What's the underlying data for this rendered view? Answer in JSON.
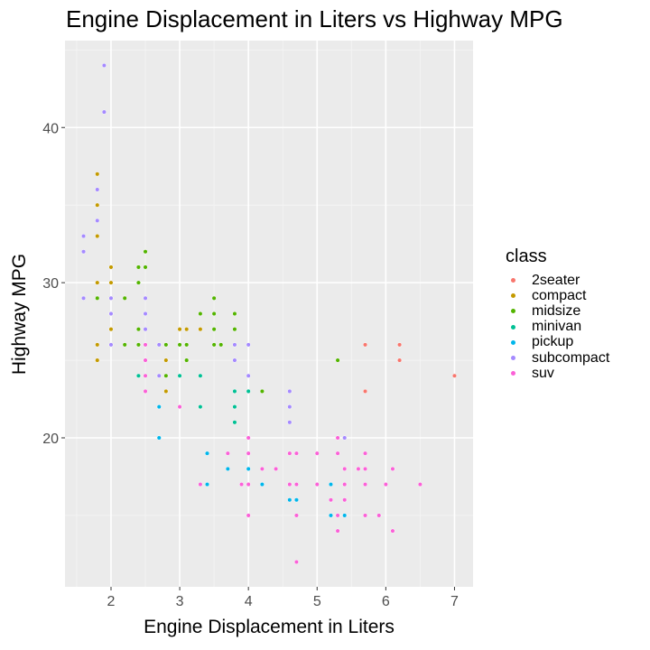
{
  "chart_data": {
    "type": "scatter",
    "title": "Engine Displacement in Liters vs Highway MPG",
    "xlabel": "Engine Displacement in Liters",
    "ylabel": "Highway MPG",
    "xlim": [
      1.33,
      7.27
    ],
    "ylim": [
      10.4,
      45.6
    ],
    "xticks": [
      2,
      3,
      4,
      5,
      6,
      7
    ],
    "yticks": [
      20,
      30,
      40
    ],
    "grid": true,
    "legend": {
      "title": "class",
      "placement": "right"
    },
    "series": [
      {
        "name": "2seater",
        "color": "#F8766D",
        "points": [
          [
            5.7,
            26
          ],
          [
            5.7,
            23
          ],
          [
            6.2,
            26
          ],
          [
            6.2,
            25
          ],
          [
            7.0,
            24
          ]
        ]
      },
      {
        "name": "compact",
        "color": "#C49A00",
        "points": [
          [
            1.8,
            29
          ],
          [
            2.0,
            31
          ],
          [
            2.0,
            30
          ],
          [
            2.8,
            26
          ],
          [
            3.1,
            27
          ],
          [
            1.8,
            26
          ],
          [
            1.8,
            25
          ],
          [
            2.0,
            28
          ],
          [
            2.0,
            27
          ],
          [
            2.8,
            25
          ],
          [
            3.1,
            25
          ],
          [
            2.2,
            26
          ],
          [
            2.2,
            29
          ],
          [
            2.4,
            31
          ],
          [
            3.0,
            27
          ],
          [
            3.3,
            27
          ],
          [
            1.8,
            30
          ],
          [
            1.8,
            33
          ],
          [
            1.8,
            35
          ],
          [
            1.8,
            37
          ],
          [
            2.0,
            29
          ],
          [
            2.8,
            24
          ],
          [
            2.0,
            26
          ],
          [
            2.5,
            29
          ],
          [
            2.8,
            23
          ]
        ]
      },
      {
        "name": "midsize",
        "color": "#53B400",
        "points": [
          [
            2.8,
            24
          ],
          [
            3.1,
            25
          ],
          [
            4.2,
            23
          ],
          [
            2.4,
            27
          ],
          [
            2.4,
            30
          ],
          [
            3.1,
            26
          ],
          [
            3.5,
            29
          ],
          [
            3.6,
            26
          ],
          [
            2.4,
            26
          ],
          [
            2.4,
            31
          ],
          [
            2.5,
            26
          ],
          [
            3.3,
            28
          ],
          [
            2.5,
            32
          ],
          [
            2.5,
            31
          ],
          [
            3.5,
            27
          ],
          [
            3.5,
            26
          ],
          [
            3.0,
            26
          ],
          [
            3.8,
            27
          ],
          [
            3.8,
            26
          ],
          [
            3.8,
            28
          ],
          [
            5.3,
            25
          ],
          [
            2.2,
            26
          ],
          [
            2.2,
            29
          ],
          [
            3.0,
            26
          ],
          [
            3.5,
            28
          ],
          [
            1.8,
            29
          ],
          [
            2.0,
            28
          ],
          [
            2.0,
            29
          ],
          [
            2.8,
            26
          ]
        ]
      },
      {
        "name": "minivan",
        "color": "#00C094",
        "points": [
          [
            2.4,
            24
          ],
          [
            3.0,
            24
          ],
          [
            3.3,
            22
          ],
          [
            3.3,
            24
          ],
          [
            3.3,
            17
          ],
          [
            3.8,
            22
          ],
          [
            3.8,
            21
          ],
          [
            3.8,
            23
          ],
          [
            4.0,
            23
          ]
        ]
      },
      {
        "name": "pickup",
        "color": "#00B6EB",
        "points": [
          [
            3.7,
            19
          ],
          [
            3.7,
            18
          ],
          [
            3.9,
            17
          ],
          [
            4.7,
            19
          ],
          [
            4.7,
            12
          ],
          [
            5.2,
            17
          ],
          [
            5.2,
            15
          ],
          [
            4.7,
            16
          ],
          [
            4.7,
            17
          ],
          [
            5.2,
            16
          ],
          [
            5.7,
            17
          ],
          [
            5.9,
            15
          ],
          [
            4.2,
            17
          ],
          [
            4.6,
            16
          ],
          [
            4.6,
            17
          ],
          [
            5.4,
            15
          ],
          [
            5.4,
            16
          ],
          [
            2.7,
            20
          ],
          [
            2.7,
            22
          ],
          [
            3.4,
            17
          ],
          [
            3.4,
            19
          ],
          [
            4.0,
            18
          ],
          [
            4.0,
            20
          ]
        ]
      },
      {
        "name": "subcompact",
        "color": "#A58AFF",
        "points": [
          [
            3.8,
            26
          ],
          [
            3.8,
            25
          ],
          [
            4.0,
            26
          ],
          [
            4.0,
            24
          ],
          [
            4.6,
            21
          ],
          [
            4.6,
            22
          ],
          [
            4.6,
            23
          ],
          [
            5.4,
            20
          ],
          [
            1.6,
            33
          ],
          [
            1.6,
            32
          ],
          [
            1.6,
            29
          ],
          [
            1.8,
            34
          ],
          [
            1.8,
            36
          ],
          [
            2.0,
            29
          ],
          [
            2.0,
            26
          ],
          [
            2.0,
            28
          ],
          [
            2.7,
            26
          ],
          [
            2.7,
            24
          ],
          [
            2.5,
            26
          ],
          [
            2.5,
            25
          ],
          [
            2.5,
            27
          ],
          [
            1.9,
            44
          ],
          [
            1.9,
            41
          ],
          [
            2.5,
            28
          ],
          [
            2.5,
            29
          ]
        ]
      },
      {
        "name": "suv",
        "color": "#FB61D7",
        "points": [
          [
            5.3,
            20
          ],
          [
            5.3,
            15
          ],
          [
            5.7,
            17
          ],
          [
            6.0,
            17
          ],
          [
            5.3,
            19
          ],
          [
            5.3,
            14
          ],
          [
            5.7,
            15
          ],
          [
            6.5,
            17
          ],
          [
            3.9,
            17
          ],
          [
            4.7,
            17
          ],
          [
            4.7,
            12
          ],
          [
            5.2,
            16
          ],
          [
            5.7,
            18
          ],
          [
            5.9,
            15
          ],
          [
            4.6,
            17
          ],
          [
            5.4,
            17
          ],
          [
            5.4,
            18
          ],
          [
            4.0,
            17
          ],
          [
            4.0,
            19
          ],
          [
            5.0,
            17
          ],
          [
            3.0,
            22
          ],
          [
            3.7,
            19
          ],
          [
            4.0,
            20
          ],
          [
            4.7,
            19
          ],
          [
            5.7,
            19
          ],
          [
            6.1,
            18
          ],
          [
            4.0,
            15
          ],
          [
            4.2,
            18
          ],
          [
            4.4,
            18
          ],
          [
            5.4,
            16
          ],
          [
            4.6,
            19
          ],
          [
            5.0,
            19
          ],
          [
            3.3,
            17
          ],
          [
            5.6,
            18
          ],
          [
            2.5,
            26
          ],
          [
            2.5,
            25
          ],
          [
            2.5,
            23
          ],
          [
            2.5,
            24
          ],
          [
            4.7,
            15
          ],
          [
            6.1,
            14
          ]
        ]
      }
    ]
  }
}
